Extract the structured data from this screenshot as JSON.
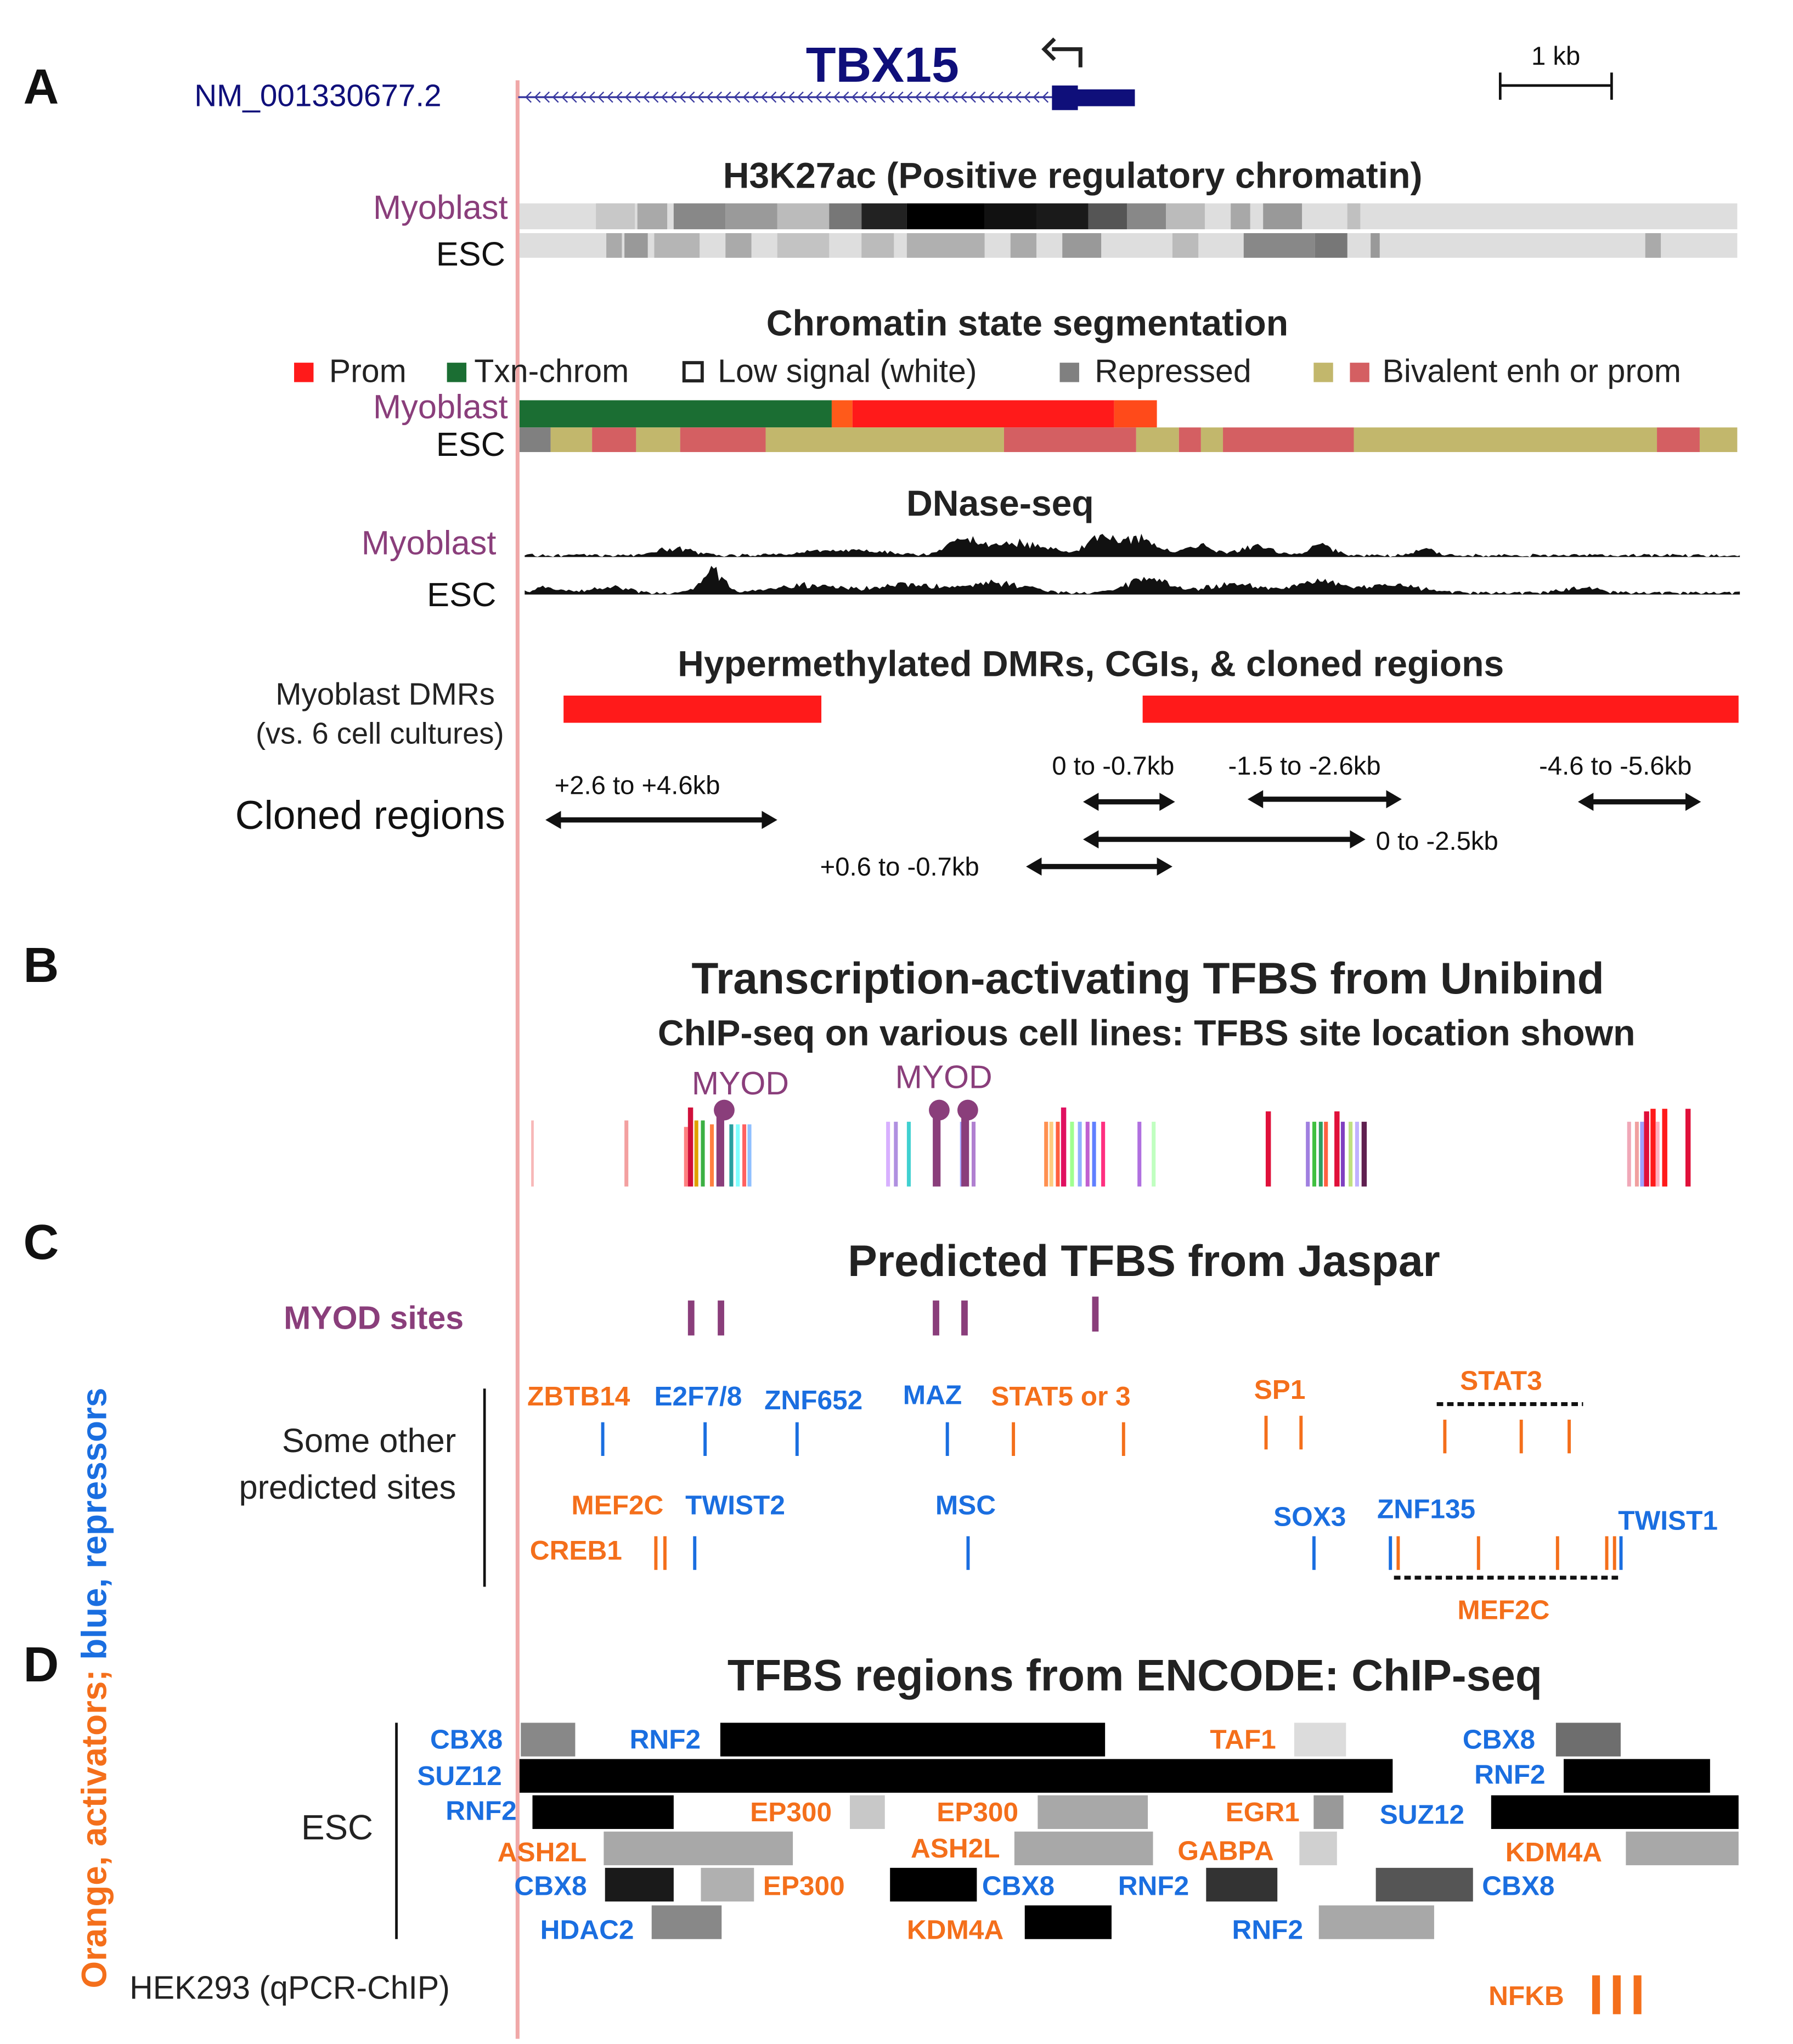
{
  "panels": {
    "a": "A",
    "b": "B",
    "c": "C",
    "d": "D"
  },
  "colors": {
    "navy": "#0f0f7a",
    "purple": "#8a3e7b",
    "orange": "#f46f1b",
    "blue": "#1a6ee0",
    "red": "#ff1a1a",
    "darkgreen": "#1b6e33",
    "gray": "#808080",
    "khaki": "#c2b76c",
    "rose": "#d45f62",
    "pinkline": "#f0a8a8"
  },
  "gene": {
    "name": "TBX15",
    "transcript": "NM_001330677.2",
    "scale_bar": "1 kb"
  },
  "h3k27ac": {
    "title": "H3K27ac (Positive regulatory chromatin)",
    "row1": "Myoblast",
    "row2": "ESC"
  },
  "chromatin": {
    "title": "Chromatin state segmentation",
    "legend": {
      "prom": "Prom",
      "txn": "Txn-chrom",
      "low": "Low signal (white)",
      "repressed": "Repressed",
      "bivalent": "Bivalent enh or prom"
    },
    "row1": "Myoblast",
    "row2": "ESC"
  },
  "dnase": {
    "title": "DNase-seq",
    "row1": "Myoblast",
    "row2": "ESC"
  },
  "dmr": {
    "title": "Hypermethylated DMRs, CGIs, & cloned regions",
    "label_line1": "Myoblast DMRs",
    "label_line2": "(vs. 6 cell cultures)",
    "cloned_label": "Cloned regions",
    "regions": {
      "r1": "+2.6 to +4.6kb",
      "r2": "0 to -0.7kb",
      "r3": "-1.5 to -2.6kb",
      "r4": "-4.6 to -5.6kb",
      "r5": "0 to -2.5kb",
      "r6": "+0.6 to -0.7kb"
    }
  },
  "unibind": {
    "title": "Transcription-activating TFBS from Unibind",
    "subtitle": "ChIP-seq on various cell lines: TFBS site location shown",
    "myod1": "MYOD",
    "myod2": "MYOD"
  },
  "jaspar": {
    "title": "Predicted TFBS from Jaspar",
    "myod_label": "MYOD sites",
    "other_line1": "Some other",
    "other_line2": "predicted sites",
    "sites": {
      "zbtb14": "ZBTB14",
      "e2f78": "E2F7/8",
      "znf652": "ZNF652",
      "maz": "MAZ",
      "stat53": "STAT5 or 3",
      "sp1": "SP1",
      "stat3": "STAT3",
      "mef2c_a": "MEF2C",
      "twist2": "TWIST2",
      "creb1": "CREB1",
      "msc": "MSC",
      "sox3": "SOX3",
      "znf135": "ZNF135",
      "twist1": "TWIST1",
      "mef2c_b": "MEF2C"
    }
  },
  "encode": {
    "title": "TFBS regions from ENCODE: ChIP-seq",
    "esc": "ESC",
    "hek": "HEK293 (qPCR-ChIP)",
    "labels": {
      "cbx8_1": "CBX8",
      "rnf2_1": "RNF2",
      "taf1": "TAF1",
      "cbx8_2": "CBX8",
      "suz12_1": "SUZ12",
      "rnf2_2": "RNF2",
      "rnf2_3": "RNF2",
      "ep300_1": "EP300",
      "ep300_2": "EP300",
      "egr1": "EGR1",
      "suz12_2": "SUZ12",
      "ash2l_1": "ASH2L",
      "ash2l_2": "ASH2L",
      "gabpa": "GABPA",
      "kdm4a_1": "KDM4A",
      "cbx8_3": "CBX8",
      "ep300_3": "EP300",
      "cbx8_4": "CBX8",
      "rnf2_4": "RNF2",
      "cbx8_5": "CBX8",
      "hdac2": "HDAC2",
      "kdm4a_2": "KDM4A",
      "rnf2_5": "RNF2",
      "nfkb": "NFKB"
    }
  },
  "side_label": {
    "orange": "Orange, activators;",
    "blue": " blue, repressors"
  }
}
